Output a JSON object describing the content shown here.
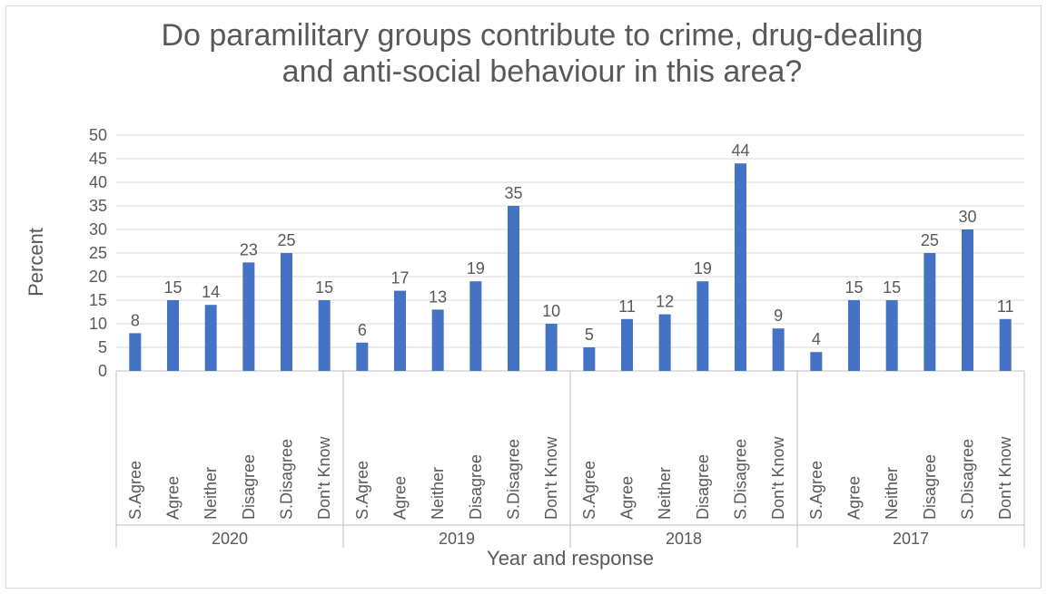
{
  "chart_data": {
    "type": "bar",
    "title": "Do paramilitary groups contribute to crime, drug-dealing and anti-social behaviour in this area?",
    "xlabel": "Year and response",
    "ylabel": "Percent",
    "ylim": [
      0,
      50
    ],
    "ytick_step": 5,
    "grid": true,
    "bar_color": "#4472c4",
    "groups": [
      {
        "name": "2020",
        "categories": [
          "S.Agree",
          "Agree",
          "Neither",
          "Disagree",
          "S.Disagree",
          "Don't Know"
        ],
        "values": [
          8,
          15,
          14,
          23,
          25,
          15
        ]
      },
      {
        "name": "2019",
        "categories": [
          "S.Agree",
          "Agree",
          "Neither",
          "Disagree",
          "S.Disagree",
          "Don't Know"
        ],
        "values": [
          6,
          17,
          13,
          19,
          35,
          10
        ]
      },
      {
        "name": "2018",
        "categories": [
          "S.Agree",
          "Agree",
          "Neither",
          "Disagree",
          "S.Disagree",
          "Don't Know"
        ],
        "values": [
          5,
          11,
          12,
          19,
          44,
          9
        ]
      },
      {
        "name": "2017",
        "categories": [
          "S.Agree",
          "Agree",
          "Neither",
          "Disagree",
          "S.Disagree",
          "Don't Know"
        ],
        "values": [
          4,
          15,
          15,
          25,
          30,
          11
        ]
      }
    ]
  }
}
